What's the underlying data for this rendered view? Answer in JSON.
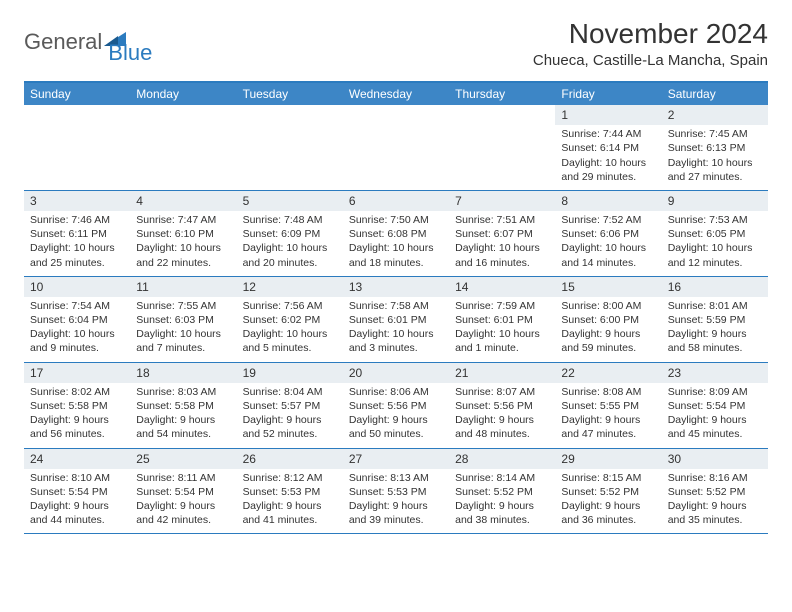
{
  "logo": {
    "text1": "General",
    "text2": "Blue"
  },
  "title": "November 2024",
  "location": "Chueca, Castille-La Mancha, Spain",
  "colors": {
    "header_bg": "#3d86c6",
    "border": "#2b7bbf",
    "daynum_bg": "#e9eef2",
    "text": "#333333",
    "logo_gray": "#5a5a5a",
    "logo_blue": "#2b7bbf"
  },
  "day_names": [
    "Sunday",
    "Monday",
    "Tuesday",
    "Wednesday",
    "Thursday",
    "Friday",
    "Saturday"
  ],
  "weeks": [
    [
      {
        "empty": true
      },
      {
        "empty": true
      },
      {
        "empty": true
      },
      {
        "empty": true
      },
      {
        "empty": true
      },
      {
        "day": "1",
        "sunrise": "Sunrise: 7:44 AM",
        "sunset": "Sunset: 6:14 PM",
        "daylight": "Daylight: 10 hours and 29 minutes."
      },
      {
        "day": "2",
        "sunrise": "Sunrise: 7:45 AM",
        "sunset": "Sunset: 6:13 PM",
        "daylight": "Daylight: 10 hours and 27 minutes."
      }
    ],
    [
      {
        "day": "3",
        "sunrise": "Sunrise: 7:46 AM",
        "sunset": "Sunset: 6:11 PM",
        "daylight": "Daylight: 10 hours and 25 minutes."
      },
      {
        "day": "4",
        "sunrise": "Sunrise: 7:47 AM",
        "sunset": "Sunset: 6:10 PM",
        "daylight": "Daylight: 10 hours and 22 minutes."
      },
      {
        "day": "5",
        "sunrise": "Sunrise: 7:48 AM",
        "sunset": "Sunset: 6:09 PM",
        "daylight": "Daylight: 10 hours and 20 minutes."
      },
      {
        "day": "6",
        "sunrise": "Sunrise: 7:50 AM",
        "sunset": "Sunset: 6:08 PM",
        "daylight": "Daylight: 10 hours and 18 minutes."
      },
      {
        "day": "7",
        "sunrise": "Sunrise: 7:51 AM",
        "sunset": "Sunset: 6:07 PM",
        "daylight": "Daylight: 10 hours and 16 minutes."
      },
      {
        "day": "8",
        "sunrise": "Sunrise: 7:52 AM",
        "sunset": "Sunset: 6:06 PM",
        "daylight": "Daylight: 10 hours and 14 minutes."
      },
      {
        "day": "9",
        "sunrise": "Sunrise: 7:53 AM",
        "sunset": "Sunset: 6:05 PM",
        "daylight": "Daylight: 10 hours and 12 minutes."
      }
    ],
    [
      {
        "day": "10",
        "sunrise": "Sunrise: 7:54 AM",
        "sunset": "Sunset: 6:04 PM",
        "daylight": "Daylight: 10 hours and 9 minutes."
      },
      {
        "day": "11",
        "sunrise": "Sunrise: 7:55 AM",
        "sunset": "Sunset: 6:03 PM",
        "daylight": "Daylight: 10 hours and 7 minutes."
      },
      {
        "day": "12",
        "sunrise": "Sunrise: 7:56 AM",
        "sunset": "Sunset: 6:02 PM",
        "daylight": "Daylight: 10 hours and 5 minutes."
      },
      {
        "day": "13",
        "sunrise": "Sunrise: 7:58 AM",
        "sunset": "Sunset: 6:01 PM",
        "daylight": "Daylight: 10 hours and 3 minutes."
      },
      {
        "day": "14",
        "sunrise": "Sunrise: 7:59 AM",
        "sunset": "Sunset: 6:01 PM",
        "daylight": "Daylight: 10 hours and 1 minute."
      },
      {
        "day": "15",
        "sunrise": "Sunrise: 8:00 AM",
        "sunset": "Sunset: 6:00 PM",
        "daylight": "Daylight: 9 hours and 59 minutes."
      },
      {
        "day": "16",
        "sunrise": "Sunrise: 8:01 AM",
        "sunset": "Sunset: 5:59 PM",
        "daylight": "Daylight: 9 hours and 58 minutes."
      }
    ],
    [
      {
        "day": "17",
        "sunrise": "Sunrise: 8:02 AM",
        "sunset": "Sunset: 5:58 PM",
        "daylight": "Daylight: 9 hours and 56 minutes."
      },
      {
        "day": "18",
        "sunrise": "Sunrise: 8:03 AM",
        "sunset": "Sunset: 5:58 PM",
        "daylight": "Daylight: 9 hours and 54 minutes."
      },
      {
        "day": "19",
        "sunrise": "Sunrise: 8:04 AM",
        "sunset": "Sunset: 5:57 PM",
        "daylight": "Daylight: 9 hours and 52 minutes."
      },
      {
        "day": "20",
        "sunrise": "Sunrise: 8:06 AM",
        "sunset": "Sunset: 5:56 PM",
        "daylight": "Daylight: 9 hours and 50 minutes."
      },
      {
        "day": "21",
        "sunrise": "Sunrise: 8:07 AM",
        "sunset": "Sunset: 5:56 PM",
        "daylight": "Daylight: 9 hours and 48 minutes."
      },
      {
        "day": "22",
        "sunrise": "Sunrise: 8:08 AM",
        "sunset": "Sunset: 5:55 PM",
        "daylight": "Daylight: 9 hours and 47 minutes."
      },
      {
        "day": "23",
        "sunrise": "Sunrise: 8:09 AM",
        "sunset": "Sunset: 5:54 PM",
        "daylight": "Daylight: 9 hours and 45 minutes."
      }
    ],
    [
      {
        "day": "24",
        "sunrise": "Sunrise: 8:10 AM",
        "sunset": "Sunset: 5:54 PM",
        "daylight": "Daylight: 9 hours and 44 minutes."
      },
      {
        "day": "25",
        "sunrise": "Sunrise: 8:11 AM",
        "sunset": "Sunset: 5:54 PM",
        "daylight": "Daylight: 9 hours and 42 minutes."
      },
      {
        "day": "26",
        "sunrise": "Sunrise: 8:12 AM",
        "sunset": "Sunset: 5:53 PM",
        "daylight": "Daylight: 9 hours and 41 minutes."
      },
      {
        "day": "27",
        "sunrise": "Sunrise: 8:13 AM",
        "sunset": "Sunset: 5:53 PM",
        "daylight": "Daylight: 9 hours and 39 minutes."
      },
      {
        "day": "28",
        "sunrise": "Sunrise: 8:14 AM",
        "sunset": "Sunset: 5:52 PM",
        "daylight": "Daylight: 9 hours and 38 minutes."
      },
      {
        "day": "29",
        "sunrise": "Sunrise: 8:15 AM",
        "sunset": "Sunset: 5:52 PM",
        "daylight": "Daylight: 9 hours and 36 minutes."
      },
      {
        "day": "30",
        "sunrise": "Sunrise: 8:16 AM",
        "sunset": "Sunset: 5:52 PM",
        "daylight": "Daylight: 9 hours and 35 minutes."
      }
    ]
  ]
}
